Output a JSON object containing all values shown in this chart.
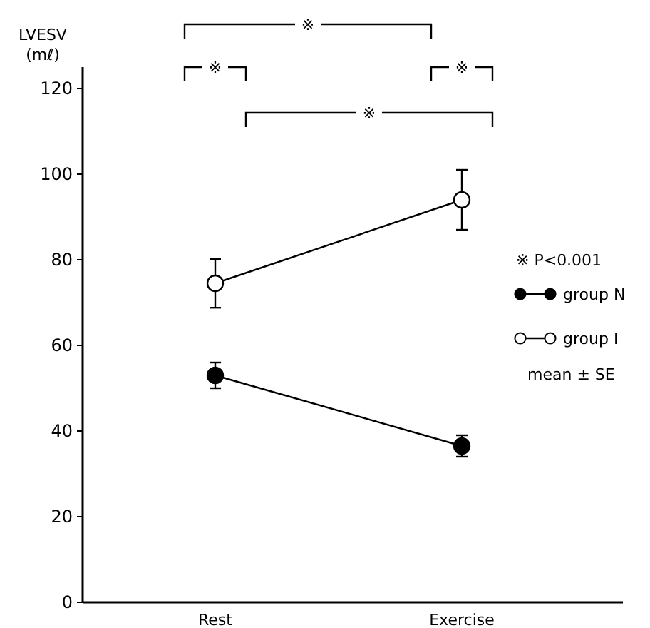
{
  "chart_data": {
    "type": "line",
    "ylabel": "LVESV\n(mℓ)",
    "categories": [
      "Rest",
      "Exercise"
    ],
    "series": [
      {
        "name": "group N",
        "color": "#000000",
        "values": [
          53,
          36.5
        ],
        "errors": [
          3,
          2.5
        ]
      },
      {
        "name": "group I",
        "color": "#ffffff",
        "values": [
          74.5,
          94
        ],
        "errors": [
          5.7,
          7
        ]
      }
    ],
    "ylim": [
      0,
      125
    ],
    "yticks": [
      0,
      20,
      40,
      60,
      80,
      100,
      120
    ],
    "grid": false,
    "legend": "right",
    "marker": "circle",
    "line_style": "solid",
    "annotations": [
      "※",
      "※",
      "※",
      "※",
      "※ P<0.001",
      "mean ± SE"
    ]
  }
}
